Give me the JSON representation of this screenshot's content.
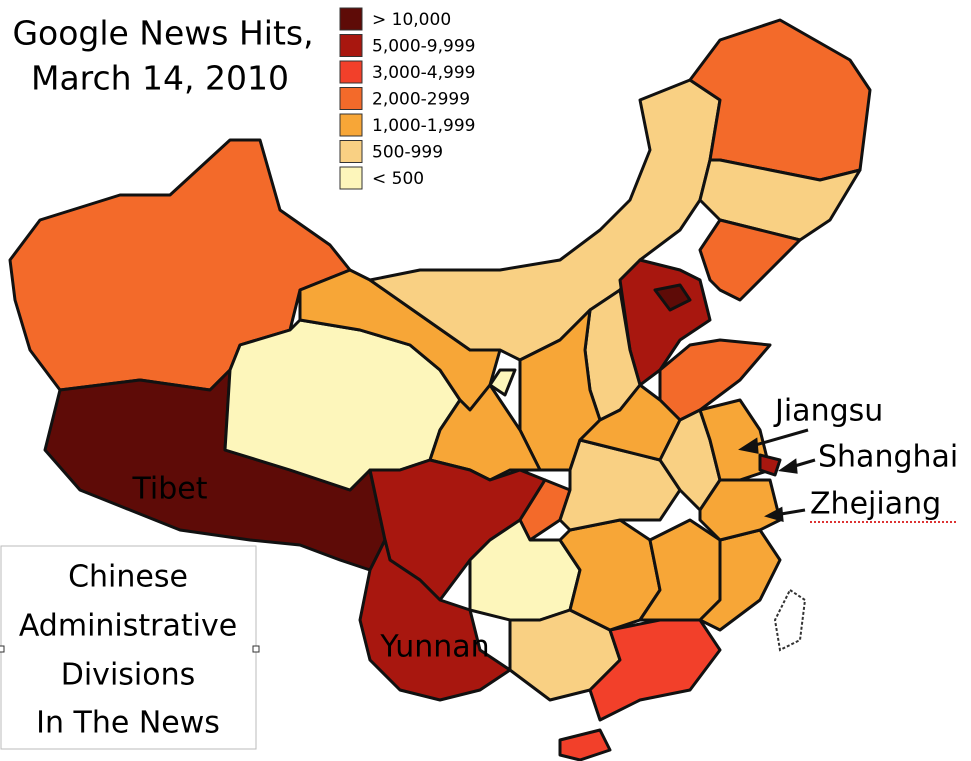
{
  "title": [
    "Google News Hits,",
    "March 14, 2010"
  ],
  "legend": [
    {
      "label": "> 10,000",
      "color": "#5e0b07"
    },
    {
      "label": "5,000-9,999",
      "color": "#a8170f"
    },
    {
      "label": "3,000-4,999",
      "color": "#f2402a"
    },
    {
      "label": "2,000-2999",
      "color": "#f36a2a"
    },
    {
      "label": "1,000-1,999",
      "color": "#f7a637"
    },
    {
      "label": "500-999",
      "color": "#f9d083"
    },
    {
      "label": "< 500",
      "color": "#fdf6bb"
    }
  ],
  "map_labels": [
    "Tibet",
    "Yunnan",
    "Jiangsu",
    "Shanghai",
    "Zhejiang"
  ],
  "caption": [
    "Chinese",
    "Administrative",
    "Divisions",
    "In The News"
  ]
}
